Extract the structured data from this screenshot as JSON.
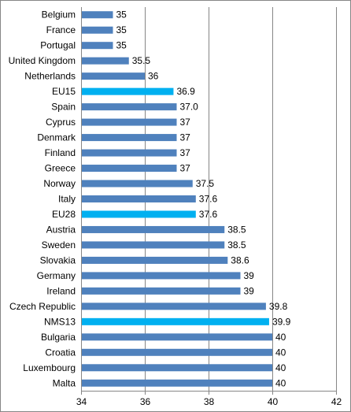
{
  "chart_data": {
    "type": "bar",
    "orientation": "horizontal",
    "categories": [
      "Belgium",
      "France",
      "Portugal",
      "United Kingdom",
      "Netherlands",
      "EU15",
      "Spain",
      "Cyprus",
      "Denmark",
      "Finland",
      "Greece",
      "Norway",
      "Italy",
      "EU28",
      "Austria",
      "Sweden",
      "Slovakia",
      "Germany",
      "Ireland",
      "Czech Republic",
      "NMS13",
      "Bulgaria",
      "Croatia",
      "Luxembourg",
      "Malta"
    ],
    "values": [
      35,
      35,
      35,
      35.5,
      36,
      36.9,
      37.0,
      37,
      37,
      37,
      37,
      37.5,
      37.6,
      37.6,
      38.5,
      38.5,
      38.6,
      39,
      39,
      39.8,
      39.9,
      40,
      40,
      40,
      40
    ],
    "value_labels": [
      "35",
      "35",
      "35",
      "35.5",
      "36",
      "36.9",
      "37.0",
      "37",
      "37",
      "37",
      "37",
      "37.5",
      "37.6",
      "37.6",
      "38.5",
      "38.5",
      "38.6",
      "39",
      "39",
      "39.8",
      "39.9",
      "40",
      "40",
      "40",
      "40"
    ],
    "highlighted": [
      "EU15",
      "EU28",
      "NMS13"
    ],
    "xlim": [
      34,
      42
    ],
    "xticks": [
      "34",
      "36",
      "38",
      "40",
      "42"
    ],
    "grid": true,
    "legend": "none",
    "title": "",
    "xlabel": "",
    "ylabel": "",
    "colors": {
      "bar": "#4f81bd",
      "highlight": "#00b0f0",
      "grid": "#868686",
      "axis": "#868686"
    }
  }
}
